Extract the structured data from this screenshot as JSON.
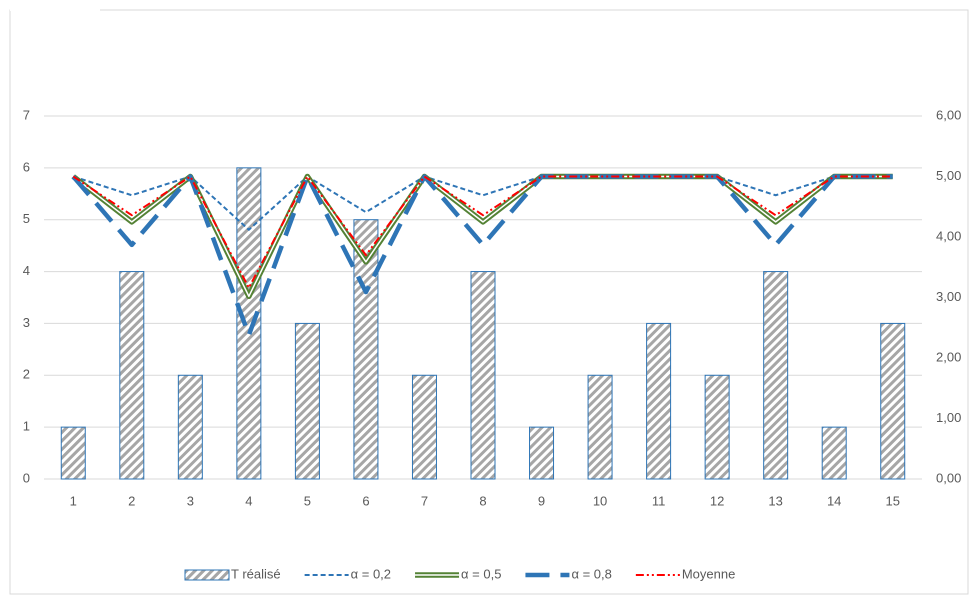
{
  "chart_data": {
    "type": "bar",
    "categories": [
      "1",
      "2",
      "3",
      "4",
      "5",
      "6",
      "7",
      "8",
      "9",
      "10",
      "11",
      "12",
      "13",
      "14",
      "15"
    ],
    "ylim": [
      0,
      7
    ],
    "yticks": [
      0,
      1,
      2,
      3,
      4,
      5,
      6,
      7
    ],
    "y2lim": [
      0,
      6
    ],
    "y2ticks": [
      {
        "value": 0,
        "label": "0,00"
      },
      {
        "value": 1,
        "label": "1,00"
      },
      {
        "value": 2,
        "label": "2,00"
      },
      {
        "value": 3,
        "label": "3,00"
      },
      {
        "value": 4,
        "label": "4,00"
      },
      {
        "value": 5,
        "label": "5,00"
      },
      {
        "value": 6,
        "label": "6,00"
      }
    ],
    "grid": true,
    "legend": "bottom",
    "series": [
      {
        "name": "T réalisé",
        "type": "bar",
        "color": "#2e75b6",
        "values": [
          1,
          4,
          2,
          6,
          3,
          5,
          2,
          4,
          1,
          2,
          3,
          2,
          4,
          1,
          3
        ]
      },
      {
        "name": "α = 0,2",
        "type": "line",
        "style": "dashed",
        "axis": "y2",
        "color": "#2e75b6",
        "values": [
          5.0,
          4.69,
          5.0,
          4.12,
          5.0,
          4.41,
          5.0,
          4.69,
          5.0,
          5.0,
          5.0,
          5.0,
          4.69,
          5.0,
          5.0
        ]
      },
      {
        "name": "α = 0,5",
        "type": "line",
        "style": "double",
        "axis": "y2",
        "color": "#548235",
        "values": [
          5.0,
          4.25,
          5.0,
          3.02,
          5.0,
          3.59,
          5.0,
          4.25,
          5.0,
          5.0,
          5.0,
          5.0,
          4.25,
          5.0,
          5.0
        ]
      },
      {
        "name": "α = 0,8",
        "type": "line",
        "style": "longdash",
        "axis": "y2",
        "color": "#2e75b6",
        "values": [
          5.0,
          3.87,
          5.0,
          2.38,
          5.0,
          3.09,
          5.0,
          3.87,
          5.0,
          5.0,
          5.0,
          5.0,
          3.87,
          5.0,
          5.0
        ]
      },
      {
        "name": "Moyenne",
        "type": "line",
        "style": "dashdot",
        "axis": "y2",
        "color": "#ff0000",
        "values": [
          5.0,
          4.36,
          5.0,
          3.16,
          5.0,
          3.7,
          5.0,
          4.36,
          5.0,
          5.0,
          5.0,
          5.0,
          4.36,
          5.0,
          5.0
        ]
      }
    ]
  }
}
